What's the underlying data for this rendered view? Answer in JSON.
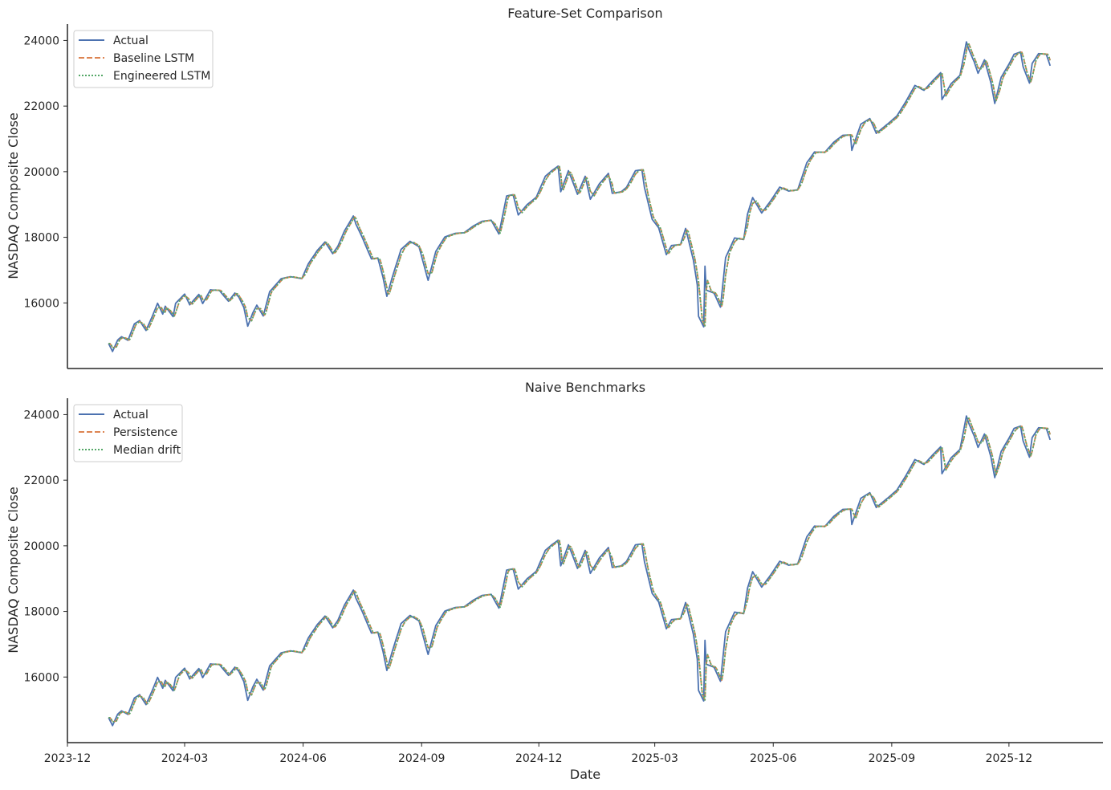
{
  "figure": {
    "xlabel": "Date",
    "ylabel": "NASDAQ Composite Close"
  },
  "colors": {
    "actual": "#4c72b0",
    "model_a": "#dd8452",
    "model_b": "#55a868",
    "axis": "#262626"
  },
  "chart_data": [
    {
      "type": "line",
      "title": "Feature-Set Comparison",
      "xlabel": "",
      "ylabel": "NASDAQ Composite Close",
      "x_range": [
        "2023-12-01",
        "2026-02-12"
      ],
      "ylim": [
        14000,
        24500
      ],
      "yticks": [
        16000,
        18000,
        20000,
        22000,
        24000
      ],
      "grid": false,
      "legend_position": "top-left",
      "series": [
        {
          "name": "Actual",
          "style": "solid",
          "color": "#4c72b0",
          "lag_days": 0
        },
        {
          "name": "Baseline LSTM",
          "style": "dashed",
          "color": "#dd8452",
          "lag_days": 1
        },
        {
          "name": "Engineered LSTM",
          "style": "dotted",
          "color": "#55a868",
          "lag_days": 1
        }
      ]
    },
    {
      "type": "line",
      "title": "Naive Benchmarks",
      "xlabel": "Date",
      "ylabel": "NASDAQ Composite Close",
      "x_range": [
        "2023-12-01",
        "2026-02-12"
      ],
      "ylim": [
        14000,
        24500
      ],
      "yticks": [
        16000,
        18000,
        20000,
        22000,
        24000
      ],
      "xticks": [
        "2023-12",
        "2024-03",
        "2024-06",
        "2024-09",
        "2024-12",
        "2025-03",
        "2025-06",
        "2025-09",
        "2025-12"
      ],
      "grid": false,
      "legend_position": "top-left",
      "series": [
        {
          "name": "Actual",
          "style": "solid",
          "color": "#4c72b0",
          "lag_days": 0
        },
        {
          "name": "Persistence",
          "style": "dashed",
          "color": "#dd8452",
          "lag_days": 1
        },
        {
          "name": "Median drift",
          "style": "dotted",
          "color": "#55a868",
          "lag_days": 1
        }
      ]
    }
  ],
  "actual_close_path": [
    [
      "2024-01-02",
      14760
    ],
    [
      "2024-01-05",
      14520
    ],
    [
      "2024-01-09",
      14870
    ],
    [
      "2024-01-12",
      14970
    ],
    [
      "2024-01-17",
      14860
    ],
    [
      "2024-01-22",
      15360
    ],
    [
      "2024-01-26",
      15460
    ],
    [
      "2024-01-31",
      15160
    ],
    [
      "2024-02-05",
      15600
    ],
    [
      "2024-02-09",
      15990
    ],
    [
      "2024-02-13",
      15660
    ],
    [
      "2024-02-15",
      15900
    ],
    [
      "2024-02-21",
      15580
    ],
    [
      "2024-02-23",
      15990
    ],
    [
      "2024-03-01",
      16270
    ],
    [
      "2024-03-05",
      15940
    ],
    [
      "2024-03-08",
      16080
    ],
    [
      "2024-03-12",
      16260
    ],
    [
      "2024-03-15",
      15980
    ],
    [
      "2024-03-21",
      16400
    ],
    [
      "2024-03-28",
      16380
    ],
    [
      "2024-04-04",
      16050
    ],
    [
      "2024-04-09",
      16300
    ],
    [
      "2024-04-12",
      16180
    ],
    [
      "2024-04-16",
      15860
    ],
    [
      "2024-04-19",
      15290
    ],
    [
      "2024-04-23",
      15700
    ],
    [
      "2024-04-26",
      15930
    ],
    [
      "2024-05-01",
      15600
    ],
    [
      "2024-05-06",
      16340
    ],
    [
      "2024-05-15",
      16740
    ],
    [
      "2024-05-22",
      16800
    ],
    [
      "2024-05-31",
      16740
    ],
    [
      "2024-06-05",
      17190
    ],
    [
      "2024-06-12",
      17600
    ],
    [
      "2024-06-18",
      17860
    ],
    [
      "2024-06-24",
      17500
    ],
    [
      "2024-06-28",
      17730
    ],
    [
      "2024-07-03",
      18190
    ],
    [
      "2024-07-10",
      18650
    ],
    [
      "2024-07-12",
      18400
    ],
    [
      "2024-07-17",
      17990
    ],
    [
      "2024-07-24",
      17340
    ],
    [
      "2024-07-29",
      17370
    ],
    [
      "2024-08-02",
      16780
    ],
    [
      "2024-08-05",
      16200
    ],
    [
      "2024-08-09",
      16750
    ],
    [
      "2024-08-16",
      17630
    ],
    [
      "2024-08-23",
      17880
    ],
    [
      "2024-08-30",
      17710
    ],
    [
      "2024-09-06",
      16690
    ],
    [
      "2024-09-12",
      17570
    ],
    [
      "2024-09-19",
      18010
    ],
    [
      "2024-09-27",
      18120
    ],
    [
      "2024-10-04",
      18140
    ],
    [
      "2024-10-11",
      18340
    ],
    [
      "2024-10-18",
      18490
    ],
    [
      "2024-10-25",
      18520
    ],
    [
      "2024-10-31",
      18100
    ],
    [
      "2024-11-06",
      19260
    ],
    [
      "2024-11-11",
      19300
    ],
    [
      "2024-11-15",
      18680
    ],
    [
      "2024-11-22",
      19000
    ],
    [
      "2024-11-29",
      19220
    ],
    [
      "2024-12-06",
      19860
    ],
    [
      "2024-12-11",
      20030
    ],
    [
      "2024-12-16",
      20170
    ],
    [
      "2024-12-18",
      19390
    ],
    [
      "2024-12-24",
      20030
    ],
    [
      "2024-12-31",
      19310
    ],
    [
      "2025-01-06",
      19860
    ],
    [
      "2025-01-10",
      19160
    ],
    [
      "2025-01-17",
      19630
    ],
    [
      "2025-01-24",
      19950
    ],
    [
      "2025-01-27",
      19340
    ],
    [
      "2025-02-03",
      19390
    ],
    [
      "2025-02-07",
      19520
    ],
    [
      "2025-02-14",
      20030
    ],
    [
      "2025-02-19",
      20060
    ],
    [
      "2025-02-21",
      19520
    ],
    [
      "2025-02-27",
      18550
    ],
    [
      "2025-03-04",
      18290
    ],
    [
      "2025-03-10",
      17470
    ],
    [
      "2025-03-14",
      17750
    ],
    [
      "2025-03-21",
      17780
    ],
    [
      "2025-03-25",
      18270
    ],
    [
      "2025-03-31",
      17300
    ],
    [
      "2025-04-03",
      16550
    ],
    [
      "2025-04-04",
      15590
    ],
    [
      "2025-04-08",
      15270
    ],
    [
      "2025-04-09",
      17120
    ],
    [
      "2025-04-10",
      16390
    ],
    [
      "2025-04-16",
      16300
    ],
    [
      "2025-04-21",
      15870
    ],
    [
      "2025-04-25",
      17380
    ],
    [
      "2025-05-02",
      17980
    ],
    [
      "2025-05-09",
      17930
    ],
    [
      "2025-05-12",
      18710
    ],
    [
      "2025-05-16",
      19210
    ],
    [
      "2025-05-23",
      18740
    ],
    [
      "2025-05-30",
      19110
    ],
    [
      "2025-06-06",
      19530
    ],
    [
      "2025-06-13",
      19410
    ],
    [
      "2025-06-20",
      19450
    ],
    [
      "2025-06-27",
      20270
    ],
    [
      "2025-07-03",
      20600
    ],
    [
      "2025-07-11",
      20590
    ],
    [
      "2025-07-18",
      20900
    ],
    [
      "2025-07-25",
      21110
    ],
    [
      "2025-07-31",
      21120
    ],
    [
      "2025-08-01",
      20650
    ],
    [
      "2025-08-08",
      21450
    ],
    [
      "2025-08-15",
      21620
    ],
    [
      "2025-08-20",
      21170
    ],
    [
      "2025-08-29",
      21460
    ],
    [
      "2025-09-05",
      21700
    ],
    [
      "2025-09-12",
      22140
    ],
    [
      "2025-09-19",
      22630
    ],
    [
      "2025-09-26",
      22480
    ],
    [
      "2025-10-03",
      22780
    ],
    [
      "2025-10-09",
      23020
    ],
    [
      "2025-10-10",
      22200
    ],
    [
      "2025-10-17",
      22680
    ],
    [
      "2025-10-24",
      22940
    ],
    [
      "2025-10-29",
      23960
    ],
    [
      "2025-10-31",
      23720
    ],
    [
      "2025-11-04",
      23350
    ],
    [
      "2025-11-07",
      23000
    ],
    [
      "2025-11-12",
      23410
    ],
    [
      "2025-11-17",
      22710
    ],
    [
      "2025-11-20",
      22080
    ],
    [
      "2025-11-25",
      22880
    ],
    [
      "2025-12-01",
      23280
    ],
    [
      "2025-12-05",
      23580
    ],
    [
      "2025-12-10",
      23650
    ],
    [
      "2025-12-12",
      23200
    ],
    [
      "2025-12-17",
      22700
    ],
    [
      "2025-12-19",
      23300
    ],
    [
      "2025-12-24",
      23600
    ],
    [
      "2025-12-30",
      23580
    ],
    [
      "2026-01-02",
      23230
    ]
  ]
}
